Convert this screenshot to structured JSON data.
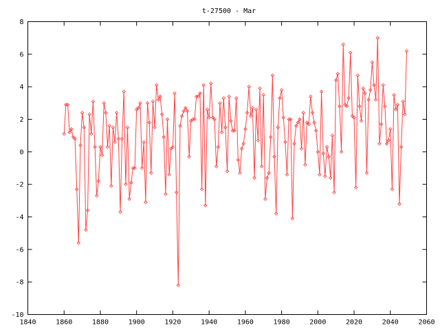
{
  "chart_data": {
    "type": "line",
    "title": "t-27500 - Mar",
    "xlabel": "",
    "ylabel": "",
    "xlim": [
      1840,
      2060
    ],
    "ylim": [
      -10,
      8
    ],
    "x_ticks": [
      1840,
      1860,
      1880,
      1900,
      1920,
      1940,
      1960,
      1980,
      2000,
      2020,
      2040,
      2060
    ],
    "y_ticks": [
      -10,
      -8,
      -6,
      -4,
      -2,
      0,
      2,
      4,
      6,
      8
    ],
    "grid": false,
    "marker": "diamond",
    "line_color": "#ff4040",
    "series": [
      {
        "x_start": 1860,
        "x_step": 1,
        "values": [
          1.1,
          2.9,
          2.9,
          1.2,
          1.4,
          0.9,
          0.8,
          -2.3,
          -5.6,
          0.4,
          2.4,
          1.5,
          -4.8,
          -3.6,
          2.3,
          1.1,
          3.1,
          0.3,
          -2.7,
          -1.8,
          0.3,
          -0.2,
          3.0,
          2.4,
          0.3,
          1.6,
          -2.1,
          1.5,
          0.6,
          2.4,
          0.8,
          -3.7,
          0.8,
          3.7,
          -2.0,
          1.5,
          -2.9,
          -1.9,
          -1.0,
          -1.0,
          2.6,
          2.7,
          3.0,
          -1.0,
          0.6,
          -3.1,
          3.0,
          1.8,
          -1.3,
          3.1,
          1.5,
          4.1,
          3.2,
          3.4,
          2.3,
          0.9,
          -2.6,
          2.0,
          -1.4,
          0.2,
          0.3,
          3.6,
          -2.5,
          -8.2,
          1.6,
          2.2,
          2.5,
          2.7,
          2.5,
          -0.3,
          1.9,
          2.0,
          2.0,
          3.4,
          3.4,
          3.6,
          -2.3,
          4.1,
          -3.3,
          2.6,
          2.1,
          4.2,
          2.1,
          2.0,
          -0.9,
          0.3,
          3.0,
          1.2,
          3.3,
          1.5,
          -1.2,
          3.4,
          1.9,
          1.3,
          1.3,
          3.3,
          -0.5,
          -1.3,
          0.2,
          0.5,
          1.4,
          2.4,
          4.0,
          2.2,
          2.7,
          -1.6,
          2.6,
          0.7,
          3.9,
          -0.9,
          3.5,
          -2.9,
          -1.6,
          -1.3,
          0.9,
          4.7,
          -0.3,
          -3.8,
          1.5,
          3.3,
          3.8,
          2.1,
          0.6,
          -1.4,
          2.0,
          2.0,
          -4.1,
          0.5,
          1.6,
          1.8,
          2.0,
          0.2,
          2.4,
          -0.8,
          1.8,
          1.7,
          3.4,
          2.4,
          1.8,
          1.3,
          0.0,
          -1.4,
          3.7,
          -0.1,
          -1.5,
          0.3,
          -0.3,
          -1.6,
          1.0,
          -2.5,
          4.4,
          4.8,
          2.8,
          0.0,
          6.6,
          2.9,
          2.8,
          3.3,
          6.1,
          2.2,
          2.1,
          -2.2,
          4.7,
          2.8,
          1.9,
          3.9,
          3.6,
          -1.3,
          3.2,
          3.8,
          5.5,
          4.1,
          3.2,
          7.0,
          0.5,
          1.7,
          4.1,
          2.8,
          0.5,
          0.7,
          1.4,
          -2.3,
          3.5,
          2.6,
          2.9,
          -3.2,
          0.3,
          3.1,
          2.3,
          6.2
        ]
      }
    ]
  }
}
